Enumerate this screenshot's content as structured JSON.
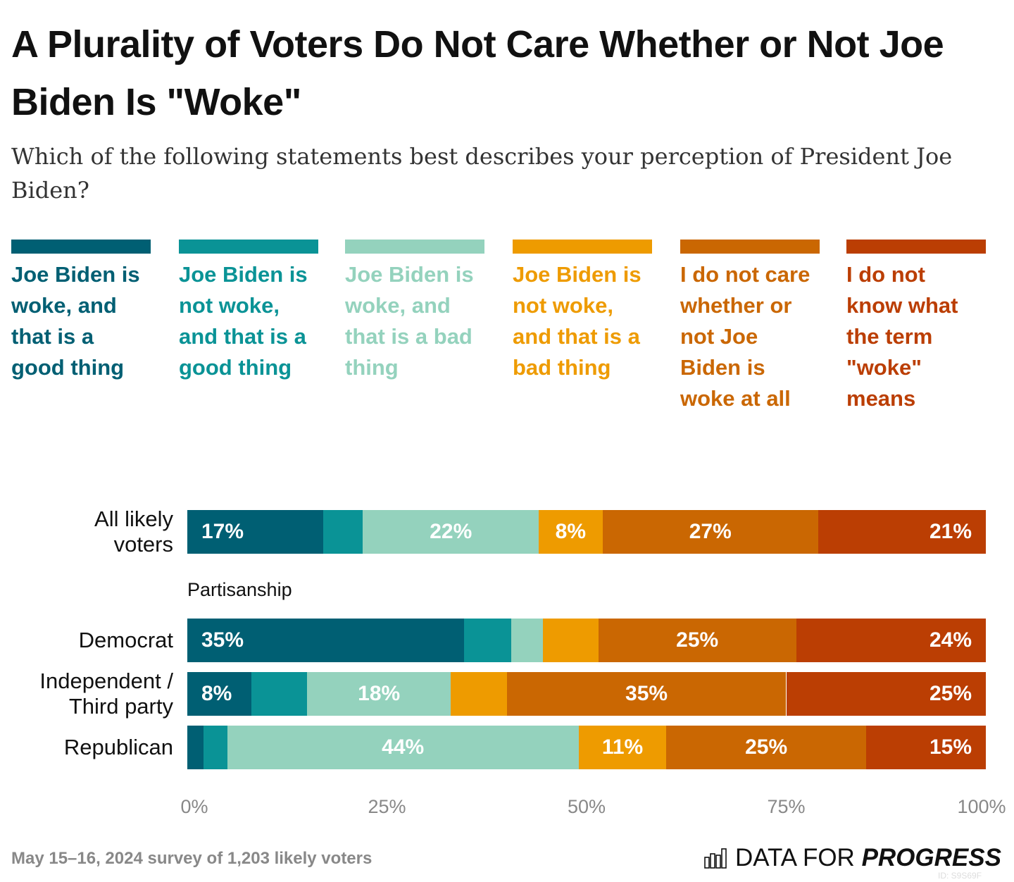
{
  "chart_data": {
    "type": "bar",
    "orientation": "horizontal",
    "stacked": true,
    "title": "A Plurality of Voters Do Not Care Whether or Not Joe Biden Is \"Woke\"",
    "subtitle": "Which of the following statements best describes your perception of President Joe Biden?",
    "categories": [
      "All likely voters",
      "Democrat",
      "Independent / Third party",
      "Republican"
    ],
    "group_label": "Partisanship",
    "series": [
      {
        "name": "Joe Biden is woke, and that is a good thing",
        "color": "#005f73",
        "values": [
          17,
          35,
          8,
          2
        ]
      },
      {
        "name": "Joe Biden is not woke, and that is a good thing",
        "color": "#0a9396",
        "values": [
          5,
          6,
          7,
          3
        ]
      },
      {
        "name": "Joe Biden is woke, and that is a bad thing",
        "color": "#94d2bd",
        "values": [
          22,
          4,
          18,
          44
        ]
      },
      {
        "name": "Joe Biden is not woke, and that is a bad thing",
        "color": "#ee9b00",
        "values": [
          8,
          7,
          7,
          11
        ]
      },
      {
        "name": "I do not care whether or not Joe Biden is woke at all",
        "color": "#ca6702",
        "values": [
          27,
          25,
          35,
          25
        ]
      },
      {
        "name": "I do not know what the term \"woke\" means",
        "color": "#bb3e03",
        "values": [
          21,
          24,
          25,
          15
        ]
      }
    ],
    "xlim": [
      0,
      100
    ],
    "xticks": [
      "0%",
      "25%",
      "50%",
      "75%",
      "100%"
    ],
    "legend_placement": "top",
    "grid": false
  },
  "footer": {
    "source": "May 15–16, 2024 survey of 1,203 likely voters",
    "logo_light": "DATA FOR",
    "logo_bold": "PROGRESS",
    "chart_id": "ID: S9S69F"
  }
}
